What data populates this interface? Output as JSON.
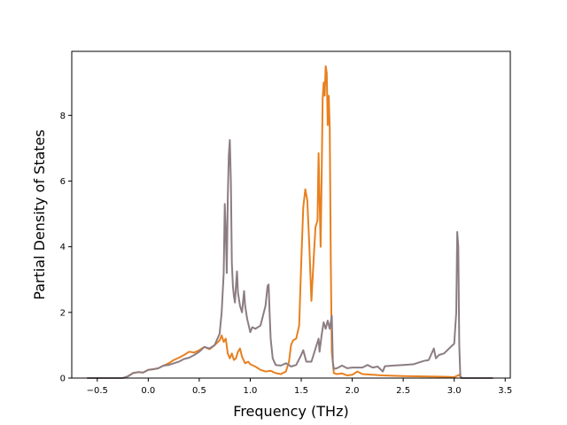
{
  "chart_data": {
    "type": "line",
    "title": "",
    "xlabel": "Frequency (THz)",
    "ylabel": "Partial Density of States",
    "xlim": [
      -0.75,
      3.55
    ],
    "ylim": [
      0,
      9.95
    ],
    "xticks": [
      -0.5,
      0.0,
      0.5,
      1.0,
      1.5,
      2.0,
      2.5,
      3.0,
      3.5
    ],
    "xtick_labels": [
      "−0.5",
      "0.0",
      "0.5",
      "1.0",
      "1.5",
      "2.0",
      "2.5",
      "3.0",
      "3.5"
    ],
    "yticks": [
      0,
      2,
      4,
      6,
      8
    ],
    "ytick_labels": [
      "0",
      "2",
      "4",
      "6",
      "8"
    ],
    "grid": false,
    "legend": "none",
    "series": [
      {
        "color": "#e8801f",
        "points": [
          [
            -0.6,
            0.0
          ],
          [
            -0.25,
            0.0
          ],
          [
            -0.2,
            0.05
          ],
          [
            -0.15,
            0.15
          ],
          [
            -0.1,
            0.18
          ],
          [
            -0.05,
            0.17
          ],
          [
            0.0,
            0.25
          ],
          [
            0.05,
            0.27
          ],
          [
            0.1,
            0.3
          ],
          [
            0.15,
            0.38
          ],
          [
            0.2,
            0.45
          ],
          [
            0.25,
            0.55
          ],
          [
            0.3,
            0.62
          ],
          [
            0.35,
            0.7
          ],
          [
            0.4,
            0.8
          ],
          [
            0.45,
            0.78
          ],
          [
            0.5,
            0.85
          ],
          [
            0.55,
            0.95
          ],
          [
            0.6,
            0.88
          ],
          [
            0.65,
            1.0
          ],
          [
            0.7,
            1.15
          ],
          [
            0.72,
            1.3
          ],
          [
            0.74,
            1.1
          ],
          [
            0.76,
            1.2
          ],
          [
            0.78,
            0.75
          ],
          [
            0.8,
            0.6
          ],
          [
            0.82,
            0.75
          ],
          [
            0.84,
            0.55
          ],
          [
            0.86,
            0.6
          ],
          [
            0.88,
            0.8
          ],
          [
            0.9,
            0.9
          ],
          [
            0.92,
            0.65
          ],
          [
            0.95,
            0.45
          ],
          [
            0.98,
            0.5
          ],
          [
            1.0,
            0.42
          ],
          [
            1.05,
            0.35
          ],
          [
            1.1,
            0.25
          ],
          [
            1.15,
            0.2
          ],
          [
            1.2,
            0.22
          ],
          [
            1.25,
            0.15
          ],
          [
            1.3,
            0.12
          ],
          [
            1.35,
            0.2
          ],
          [
            1.38,
            0.5
          ],
          [
            1.4,
            1.0
          ],
          [
            1.42,
            1.15
          ],
          [
            1.45,
            1.2
          ],
          [
            1.48,
            1.6
          ],
          [
            1.5,
            3.5
          ],
          [
            1.52,
            5.2
          ],
          [
            1.54,
            5.75
          ],
          [
            1.56,
            5.4
          ],
          [
            1.58,
            4.0
          ],
          [
            1.6,
            2.35
          ],
          [
            1.62,
            3.5
          ],
          [
            1.64,
            4.6
          ],
          [
            1.66,
            4.8
          ],
          [
            1.67,
            6.85
          ],
          [
            1.68,
            5.5
          ],
          [
            1.69,
            4.0
          ],
          [
            1.7,
            6.0
          ],
          [
            1.71,
            8.5
          ],
          [
            1.72,
            9.0
          ],
          [
            1.73,
            8.6
          ],
          [
            1.74,
            9.5
          ],
          [
            1.75,
            9.3
          ],
          [
            1.76,
            7.7
          ],
          [
            1.77,
            8.6
          ],
          [
            1.78,
            7.6
          ],
          [
            1.79,
            3.5
          ],
          [
            1.8,
            0.8
          ],
          [
            1.82,
            0.15
          ],
          [
            1.85,
            0.12
          ],
          [
            1.9,
            0.14
          ],
          [
            1.95,
            0.08
          ],
          [
            2.0,
            0.1
          ],
          [
            2.05,
            0.2
          ],
          [
            2.1,
            0.12
          ],
          [
            2.2,
            0.1
          ],
          [
            2.3,
            0.08
          ],
          [
            2.5,
            0.06
          ],
          [
            2.7,
            0.05
          ],
          [
            2.9,
            0.04
          ],
          [
            3.0,
            0.03
          ],
          [
            3.05,
            0.1
          ],
          [
            3.07,
            0.0
          ],
          [
            3.38,
            0.0
          ]
        ]
      },
      {
        "color": "#8c7d82",
        "points": [
          [
            -0.6,
            0.0
          ],
          [
            -0.25,
            0.0
          ],
          [
            -0.2,
            0.05
          ],
          [
            -0.15,
            0.15
          ],
          [
            -0.1,
            0.18
          ],
          [
            -0.05,
            0.17
          ],
          [
            0.0,
            0.25
          ],
          [
            0.05,
            0.27
          ],
          [
            0.1,
            0.3
          ],
          [
            0.15,
            0.38
          ],
          [
            0.2,
            0.4
          ],
          [
            0.25,
            0.45
          ],
          [
            0.3,
            0.5
          ],
          [
            0.35,
            0.58
          ],
          [
            0.4,
            0.62
          ],
          [
            0.45,
            0.7
          ],
          [
            0.5,
            0.8
          ],
          [
            0.55,
            0.95
          ],
          [
            0.6,
            0.9
          ],
          [
            0.65,
            1.0
          ],
          [
            0.7,
            1.35
          ],
          [
            0.72,
            2.0
          ],
          [
            0.74,
            3.2
          ],
          [
            0.75,
            5.3
          ],
          [
            0.76,
            4.5
          ],
          [
            0.77,
            3.2
          ],
          [
            0.78,
            5.5
          ],
          [
            0.79,
            6.8
          ],
          [
            0.8,
            7.25
          ],
          [
            0.81,
            6.0
          ],
          [
            0.82,
            3.5
          ],
          [
            0.83,
            2.8
          ],
          [
            0.84,
            2.5
          ],
          [
            0.85,
            2.3
          ],
          [
            0.86,
            2.8
          ],
          [
            0.87,
            3.25
          ],
          [
            0.88,
            2.6
          ],
          [
            0.9,
            2.2
          ],
          [
            0.92,
            2.0
          ],
          [
            0.94,
            2.65
          ],
          [
            0.95,
            2.2
          ],
          [
            0.97,
            1.8
          ],
          [
            1.0,
            1.4
          ],
          [
            1.02,
            1.55
          ],
          [
            1.05,
            1.5
          ],
          [
            1.1,
            1.6
          ],
          [
            1.15,
            2.2
          ],
          [
            1.17,
            2.8
          ],
          [
            1.18,
            2.85
          ],
          [
            1.19,
            2.0
          ],
          [
            1.2,
            1.2
          ],
          [
            1.22,
            0.6
          ],
          [
            1.25,
            0.4
          ],
          [
            1.3,
            0.38
          ],
          [
            1.35,
            0.45
          ],
          [
            1.38,
            0.4
          ],
          [
            1.4,
            0.35
          ],
          [
            1.45,
            0.4
          ],
          [
            1.5,
            0.7
          ],
          [
            1.52,
            0.85
          ],
          [
            1.55,
            0.5
          ],
          [
            1.6,
            0.5
          ],
          [
            1.65,
            1.0
          ],
          [
            1.67,
            1.2
          ],
          [
            1.68,
            0.8
          ],
          [
            1.7,
            1.3
          ],
          [
            1.72,
            1.7
          ],
          [
            1.74,
            1.5
          ],
          [
            1.76,
            1.75
          ],
          [
            1.78,
            1.5
          ],
          [
            1.8,
            1.9
          ],
          [
            1.81,
            0.5
          ],
          [
            1.82,
            0.28
          ],
          [
            1.85,
            0.3
          ],
          [
            1.9,
            0.38
          ],
          [
            1.95,
            0.3
          ],
          [
            2.0,
            0.32
          ],
          [
            2.1,
            0.32
          ],
          [
            2.15,
            0.4
          ],
          [
            2.2,
            0.32
          ],
          [
            2.25,
            0.35
          ],
          [
            2.3,
            0.2
          ],
          [
            2.32,
            0.36
          ],
          [
            2.4,
            0.38
          ],
          [
            2.5,
            0.4
          ],
          [
            2.6,
            0.42
          ],
          [
            2.7,
            0.52
          ],
          [
            2.75,
            0.55
          ],
          [
            2.8,
            0.9
          ],
          [
            2.82,
            0.6
          ],
          [
            2.85,
            0.7
          ],
          [
            2.9,
            0.75
          ],
          [
            2.95,
            0.9
          ],
          [
            3.0,
            1.05
          ],
          [
            3.02,
            2.0
          ],
          [
            3.03,
            4.45
          ],
          [
            3.04,
            4.0
          ],
          [
            3.05,
            1.0
          ],
          [
            3.06,
            0.05
          ],
          [
            3.08,
            0.0
          ],
          [
            3.38,
            0.0
          ]
        ]
      }
    ]
  }
}
